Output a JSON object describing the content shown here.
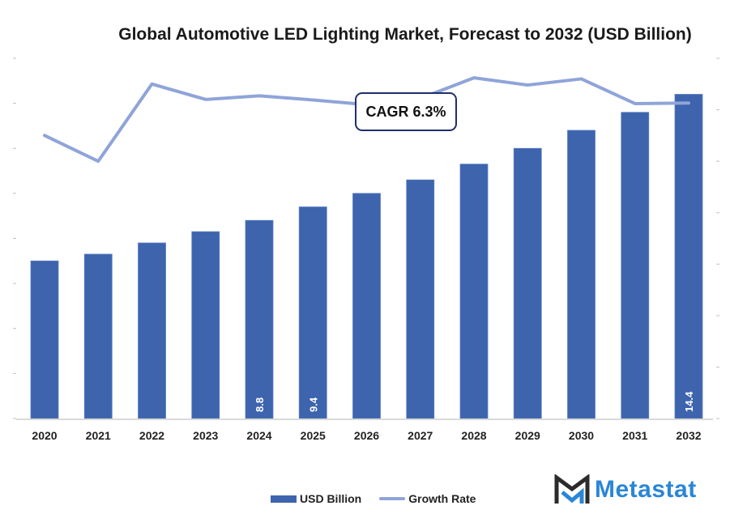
{
  "colors": {
    "bar": "#3d64ad",
    "line": "#8fa4d8",
    "axis": "#d9d9d9",
    "tick": "#bfbfbf",
    "cagr_border": "#1f2f6b",
    "logo_dark": "#2b2b2b",
    "logo_blue": "#2a86d6"
  },
  "cagr": {
    "label": "CAGR 6.3%"
  },
  "legend": {
    "bar_label": "USD Billion",
    "line_label": "Growth Rate"
  },
  "logo": {
    "text": "Metastat"
  },
  "chart_data": {
    "type": "bar",
    "title": "Global Automotive LED Lighting Market, Forecast to 2032 (USD Billion)",
    "xlabel": "",
    "ylabel": "",
    "categories": [
      "2020",
      "2021",
      "2022",
      "2023",
      "2024",
      "2025",
      "2026",
      "2027",
      "2028",
      "2029",
      "2030",
      "2031",
      "2032"
    ],
    "series": [
      {
        "name": "USD Billion",
        "type": "bar",
        "axis": "left",
        "values": [
          7.0,
          7.3,
          7.8,
          8.3,
          8.8,
          9.4,
          10.0,
          10.6,
          11.3,
          12.0,
          12.8,
          13.6,
          14.4
        ],
        "data_labels": {
          "4": "8.8",
          "5": "9.4",
          "12": "14.4"
        }
      },
      {
        "name": "Growth Rate",
        "type": "line",
        "axis": "right",
        "values": [
          5.5,
          5.0,
          6.5,
          6.2,
          6.27,
          6.19,
          6.1,
          6.22,
          6.62,
          6.48,
          6.6,
          6.12,
          6.13
        ]
      }
    ],
    "ylim": [
      0,
      16
    ],
    "y_tick_step": 2,
    "y2lim": [
      0,
      7
    ],
    "y2_tick_step": 1,
    "tick_labels_shown": false,
    "grid": false,
    "legend_position": "bottom",
    "annotation": "CAGR 6.3%"
  }
}
